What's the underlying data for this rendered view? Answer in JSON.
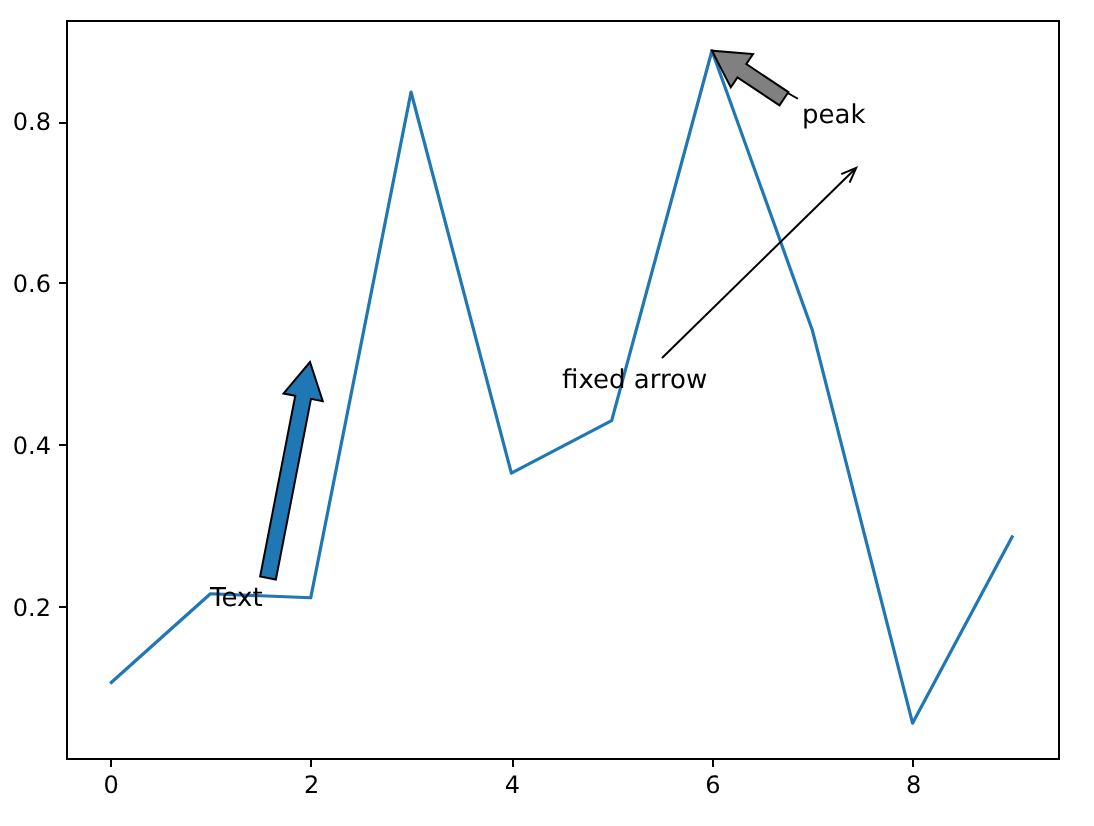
{
  "chart_data": {
    "type": "line",
    "x": [
      0,
      1,
      2,
      3,
      4,
      5,
      6,
      7,
      8,
      9
    ],
    "series": [
      {
        "color": "#1f77b4",
        "values": [
          0.105,
          0.216,
          0.211,
          0.836,
          0.365,
          0.43,
          0.887,
          0.542,
          0.056,
          0.288
        ]
      }
    ],
    "xlim": [
      -0.44,
      9.45
    ],
    "ylim": [
      0.013,
      0.925
    ],
    "xticks": [
      0,
      2,
      4,
      6,
      8
    ],
    "yticks": [
      0.2,
      0.4,
      0.6,
      0.8
    ],
    "annotations": [
      "Text",
      {
        "text": "peak",
        "x": 6,
        "y": 0.887
      },
      "fixed arrow"
    ]
  }
}
